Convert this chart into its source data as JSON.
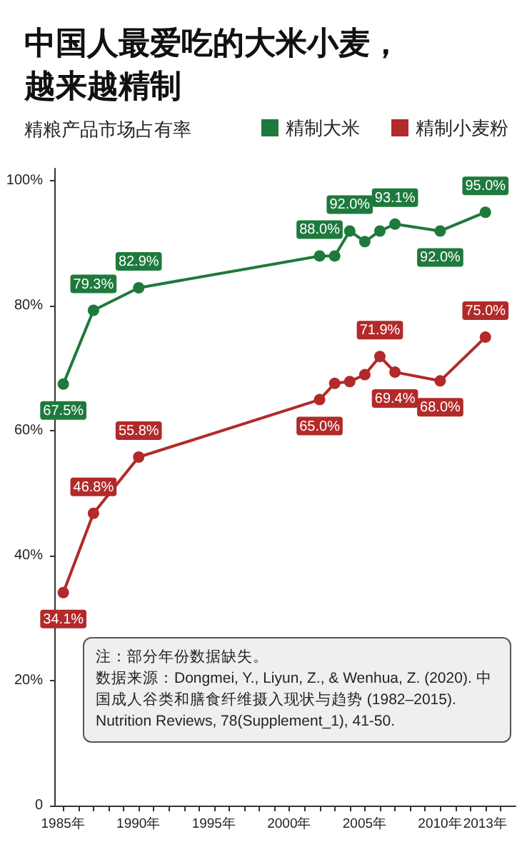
{
  "chart_data": {
    "type": "line",
    "title": "中国人最爱吃的大米小麦，越来越精制",
    "subtitle": "精粮产品市场占有率",
    "annotations": [
      "注：部分年份数据缺失。",
      "数据来源：Dongmei, Y., Liyun, Z., & Wenhua, Z. (2020). 中国成人谷类和膳食纤维摄入现状与趋势 (1982–2015). Nutrition Reviews, 78(Supplement_1), 41-50."
    ],
    "x": [
      1985,
      1987,
      1990,
      2002,
      2003,
      2004,
      2005,
      2006,
      2007,
      2010,
      2013
    ],
    "series": [
      {
        "name": "精制大米",
        "color": "#1e7a3c",
        "values": [
          67.5,
          79.3,
          82.9,
          88.0,
          88.0,
          92.0,
          90.3,
          92.0,
          93.1,
          92.0,
          95.0
        ],
        "value_labels": [
          "67.5%",
          "79.3%",
          "82.9%",
          "88.0%",
          null,
          "92.0%",
          null,
          null,
          "93.1%",
          "92.0%",
          "95.0%"
        ]
      },
      {
        "name": "精制小麦粉",
        "color": "#b22a2a",
        "values": [
          34.1,
          46.8,
          55.8,
          65.0,
          67.6,
          67.9,
          69.0,
          71.9,
          69.4,
          68.0,
          75.0
        ],
        "value_labels": [
          "34.1%",
          "46.8%",
          "55.8%",
          "65.0%",
          null,
          null,
          null,
          "71.9%",
          "69.4%",
          "68.0%",
          "75.0%"
        ]
      }
    ],
    "xlim": [
      1984.4,
      2015
    ],
    "xticks": [
      {
        "value": 1985,
        "label": "1985年"
      },
      {
        "value": 1986,
        "label": null
      },
      {
        "value": 1987,
        "label": null
      },
      {
        "value": 1988,
        "label": null
      },
      {
        "value": 1989,
        "label": null
      },
      {
        "value": 1990,
        "label": "1990年"
      },
      {
        "value": 1991,
        "label": null
      },
      {
        "value": 1992,
        "label": null
      },
      {
        "value": 1993,
        "label": null
      },
      {
        "value": 1994,
        "label": null
      },
      {
        "value": 1995,
        "label": "1995年"
      },
      {
        "value": 1996,
        "label": null
      },
      {
        "value": 1997,
        "label": null
      },
      {
        "value": 1998,
        "label": null
      },
      {
        "value": 1999,
        "label": null
      },
      {
        "value": 2000,
        "label": "2000年"
      },
      {
        "value": 2001,
        "label": null
      },
      {
        "value": 2002,
        "label": null
      },
      {
        "value": 2003,
        "label": null
      },
      {
        "value": 2004,
        "label": null
      },
      {
        "value": 2005,
        "label": "2005年"
      },
      {
        "value": 2006,
        "label": null
      },
      {
        "value": 2007,
        "label": null
      },
      {
        "value": 2008,
        "label": null
      },
      {
        "value": 2009,
        "label": null
      },
      {
        "value": 2010,
        "label": "2010年"
      },
      {
        "value": 2011,
        "label": null
      },
      {
        "value": 2012,
        "label": null
      },
      {
        "value": 2013,
        "label": "2013年"
      },
      {
        "value": 2014,
        "label": null
      }
    ],
    "ylim": [
      0,
      102
    ],
    "yticks": [
      0,
      {
        "value": 20,
        "label": "20%"
      },
      {
        "value": 40,
        "label": "40%"
      },
      {
        "value": 60,
        "label": "60%"
      },
      {
        "value": 80,
        "label": "80%"
      },
      {
        "value": 100,
        "label": "100%"
      }
    ],
    "grid": false,
    "legend": "top right",
    "marker": "circle",
    "line_style": "solid"
  }
}
